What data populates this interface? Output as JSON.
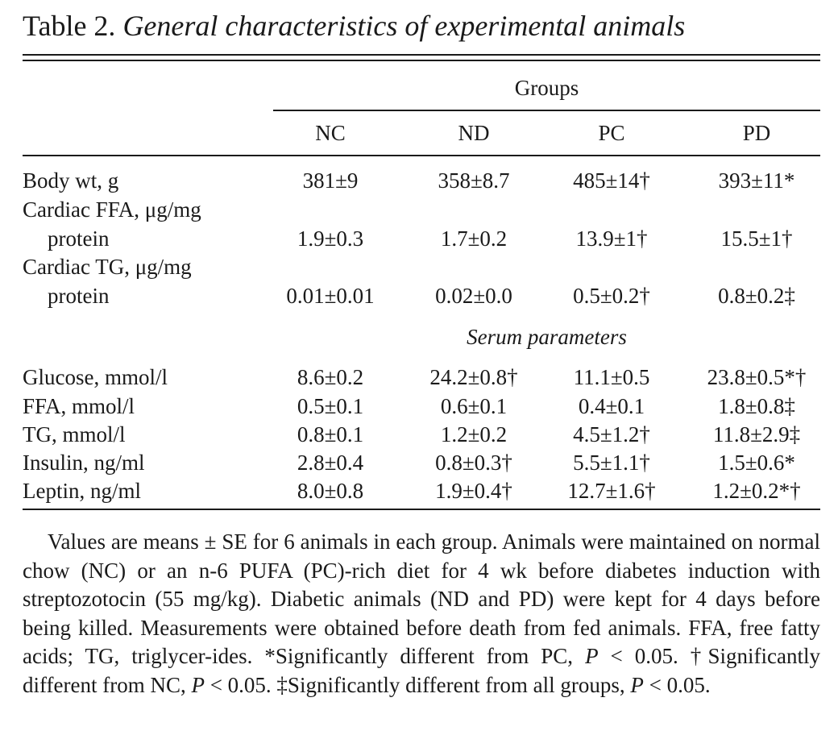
{
  "title": {
    "label": "Table 2.",
    "caption": "General characteristics of experimental animals"
  },
  "table": {
    "group_header": "Groups",
    "columns": [
      "NC",
      "ND",
      "PC",
      "PD"
    ],
    "rows": [
      {
        "label_line1": "Body wt, g",
        "label_line2": "",
        "values": [
          "381±9",
          "358±8.7",
          "485±14†",
          "393±11*"
        ]
      },
      {
        "label_line1": "Cardiac FFA, μg/mg",
        "label_line2": "protein",
        "values": [
          "1.9±0.3",
          "1.7±0.2",
          "13.9±1†",
          "15.5±1†"
        ]
      },
      {
        "label_line1": "Cardiac TG, μg/mg",
        "label_line2": "protein",
        "values": [
          "0.01±0.01",
          "0.02±0.0",
          "0.5±0.2†",
          "0.8±0.2‡"
        ]
      }
    ],
    "section_header": "Serum parameters",
    "serum_rows": [
      {
        "label": "Glucose, mmol/l",
        "values": [
          "8.6±0.2",
          "24.2±0.8†",
          "11.1±0.5",
          "23.8±0.5*†"
        ]
      },
      {
        "label": "FFA, mmol/l",
        "values": [
          "0.5±0.1",
          "0.6±0.1",
          "0.4±0.1",
          "1.8±0.8‡"
        ]
      },
      {
        "label": "TG, mmol/l",
        "values": [
          "0.8±0.1",
          "1.2±0.2",
          "4.5±1.2†",
          "11.8±2.9‡"
        ]
      },
      {
        "label": "Insulin, ng/ml",
        "values": [
          "2.8±0.4",
          "0.8±0.3†",
          "5.5±1.1†",
          "1.5±0.6*"
        ]
      },
      {
        "label": "Leptin, ng/ml",
        "values": [
          "8.0±0.8",
          "1.9±0.4†",
          "12.7±1.6†",
          "1.2±0.2*†"
        ]
      }
    ]
  },
  "footnote": {
    "part1": "Values are means ± SE for 6 animals in each group. Animals were maintained on normal chow (NC) or an n-6 PUFA (PC)-rich diet for 4 wk before diabetes induction with streptozotocin (55 mg/kg). Diabetic animals (ND and PD) were kept for 4 days before being killed. Measurements were obtained before death from fed animals. FFA, free fatty acids; TG, triglycer-ides. *Significantly different from PC, ",
    "p1": "P",
    "part2": " < 0.05. †Significantly different from NC, ",
    "p2": "P",
    "part3": " < 0.05. ‡Significantly different from all groups, ",
    "p3": "P",
    "part4": " < 0.05."
  }
}
